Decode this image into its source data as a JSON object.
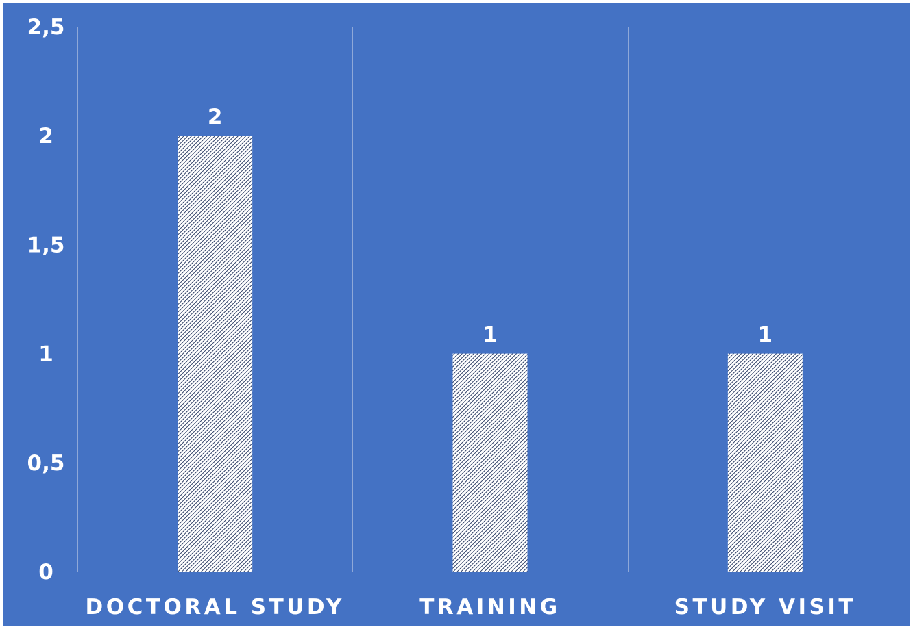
{
  "colors": {
    "background": "#4472c4",
    "bar_fill": "#ffffff",
    "bar_hatch": "#2f3f66",
    "gridline": "#8fa8d8",
    "text": "#ffffff"
  },
  "chart_data": {
    "type": "bar",
    "categories": [
      "DOCTORAL STUDY",
      "TRAINING",
      "STUDY VISIT"
    ],
    "values": [
      2,
      1,
      1
    ],
    "data_labels": [
      "2",
      "1",
      "1"
    ],
    "ylim": [
      0,
      2.5
    ],
    "yticks": [
      0,
      0.5,
      1,
      1.5,
      2,
      2.5
    ],
    "ytick_labels": [
      "0",
      "0,5",
      "1",
      "1,5",
      "2",
      "2,5"
    ],
    "title": "",
    "xlabel": "",
    "ylabel": "",
    "grid": "vertical separators between categories",
    "legend": "none",
    "bar_pattern": "diagonal hatch"
  }
}
